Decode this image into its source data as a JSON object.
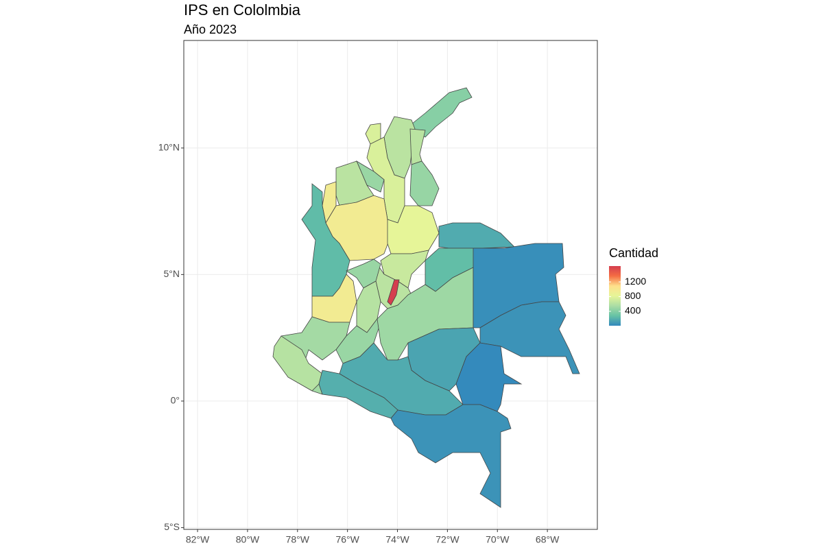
{
  "chart_data": {
    "type": "choropleth",
    "title": "IPS en Cololmbia",
    "subtitle": "Año 2023",
    "legend_title": "Cantidad",
    "colorscale": [
      "#3288bd",
      "#66c2a5",
      "#abdda4",
      "#e6f598",
      "#fee08b",
      "#f46d43",
      "#d53e4f"
    ],
    "color_limits": [
      9,
      1630
    ],
    "legend_ticks": [
      400,
      800,
      1200
    ],
    "values": [
      410,
      620,
      760,
      620,
      760,
      480,
      620,
      950,
      950,
      250,
      820,
      170,
      680,
      260,
      620,
      1630,
      480,
      600,
      950,
      520,
      480,
      600,
      500,
      40,
      60,
      140,
      170,
      190,
      20,
      60,
      470
    ],
    "xlim": [
      -82.55,
      -66.0
    ],
    "ylim": [
      -5.07,
      14.25
    ],
    "xticks": [
      {
        "value": -82,
        "label": "82°W"
      },
      {
        "value": -80,
        "label": "80°W"
      },
      {
        "value": -78,
        "label": "78°W"
      },
      {
        "value": -76,
        "label": "76°W"
      },
      {
        "value": -74,
        "label": "74°W"
      },
      {
        "value": -72,
        "label": "72°W"
      },
      {
        "value": -70,
        "label": "70°W"
      },
      {
        "value": -68,
        "label": "68°W"
      }
    ],
    "yticks": [
      {
        "value": -5,
        "label": "5°S"
      },
      {
        "value": 0,
        "label": "0°"
      },
      {
        "value": 5,
        "label": "5°N"
      },
      {
        "value": 10,
        "label": "10°N"
      }
    ],
    "grid": true
  }
}
